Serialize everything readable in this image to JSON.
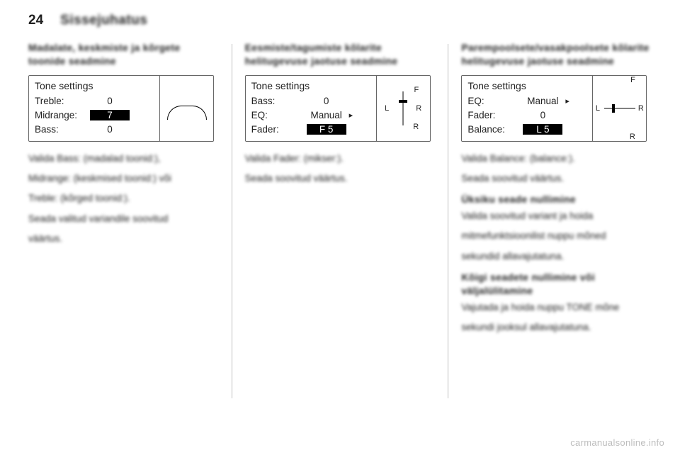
{
  "page_number": "24",
  "chapter_title": "Sissejuhatus",
  "watermark": "carmanualsonline.info",
  "col1": {
    "heading": "Madalate, keskmiste ja kõrgete toonide seadmine",
    "tone": {
      "title": "Tone settings",
      "rows": [
        {
          "label": "Treble:",
          "value": "0",
          "selected": false
        },
        {
          "label": "Midrange:",
          "value": "7",
          "selected": true
        },
        {
          "label": "Bass:",
          "value": "0",
          "selected": false
        }
      ]
    },
    "body_lines": [
      "Valida Bass: (madalad toonid:),",
      "Midrange: (keskmised toonid:) või",
      "Treble: (kõrged toonid:).",
      "Seada valitud variandile soovitud",
      "väärtus."
    ]
  },
  "col2": {
    "heading": "Eesmiste/tagumiste kõlarite helitugevuse jaotuse seadmine",
    "tone": {
      "title": "Tone settings",
      "rows": [
        {
          "label": "Bass:",
          "value": "0",
          "selected": false,
          "arrow": false
        },
        {
          "label": "EQ:",
          "value": "Manual",
          "selected": false,
          "arrow": true
        },
        {
          "label": "Fader:",
          "value": "F 5",
          "selected": true,
          "arrow": false
        }
      ],
      "slider": {
        "type": "v",
        "thumb_pct": 30,
        "labels": {
          "f": "F",
          "r": "R",
          "l": "L",
          "rt": "R"
        }
      }
    },
    "body_lines": [
      "Valida Fader: (mikser:).",
      "Seada soovitud väärtus."
    ]
  },
  "col3": {
    "heading": "Parempoolsete/vasakpoolsete kõlarite helitugevuse jaotuse seadmine",
    "tone": {
      "title": "Tone settings",
      "rows": [
        {
          "label": "EQ:",
          "value": "Manual",
          "selected": false,
          "arrow": true
        },
        {
          "label": "Fader:",
          "value": "0",
          "selected": false,
          "arrow": false
        },
        {
          "label": "Balance:",
          "value": "L 5",
          "selected": true,
          "arrow": false
        }
      ],
      "slider": {
        "type": "h",
        "thumb_pct": 30,
        "labels": {
          "f": "F",
          "r": "R",
          "l": "L",
          "rt": "R"
        }
      }
    },
    "sections": [
      {
        "lines": [
          "Valida Balance: (balance:).",
          "Seada soovitud väärtus."
        ]
      },
      {
        "bold": "Üksiku seade nullimine",
        "lines": [
          "Valida soovitud variant ja hoida",
          "mitmefunktsioonilist nuppu mõned",
          "sekundid allavajutatuna."
        ]
      },
      {
        "bold": "Kõigi seadete nullimine või väljalülitamine",
        "lines": [
          "Vajutada ja hoida nuppu TONE mõne",
          "sekundi jooksul allavajutatuna."
        ]
      }
    ]
  }
}
